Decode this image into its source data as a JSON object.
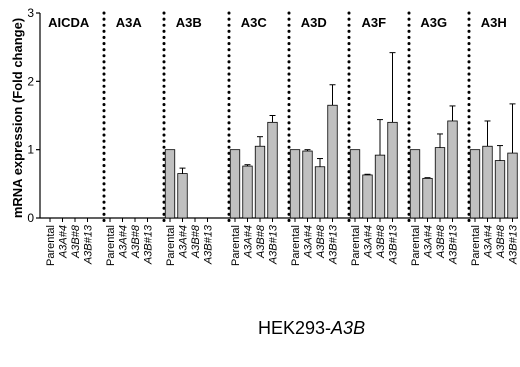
{
  "chart_data": {
    "type": "bar",
    "ylabel": "mRNA expression (Fold change)",
    "ylim": [
      0,
      3
    ],
    "yticks": [
      "0",
      "1",
      "2",
      "3"
    ],
    "xlabel": {
      "prefix": "HEK293-",
      "italic": "A3B"
    },
    "colors": {
      "bar": "#c0c0c0",
      "edge": "#000000"
    },
    "groups": [
      {
        "name": "AICDA",
        "bars": [
          {
            "label": "Parental",
            "italic": false,
            "value": 0,
            "error": 0
          },
          {
            "label": "A3A#4",
            "italic": true,
            "value": 0,
            "error": 0
          },
          {
            "label": "A3B#8",
            "italic": true,
            "value": 0,
            "error": 0
          },
          {
            "label": "A3B#13",
            "italic": true,
            "value": 0,
            "error": 0
          }
        ]
      },
      {
        "name": "A3A",
        "bars": [
          {
            "label": "Parental",
            "italic": false,
            "value": 0,
            "error": 0
          },
          {
            "label": "A3A#4",
            "italic": true,
            "value": 0,
            "error": 0
          },
          {
            "label": "A3B#8",
            "italic": true,
            "value": 0,
            "error": 0
          },
          {
            "label": "A3B#13",
            "italic": true,
            "value": 0,
            "error": 0
          }
        ]
      },
      {
        "name": "A3B",
        "bars": [
          {
            "label": "Parental",
            "italic": false,
            "value": 1.0,
            "error": 0
          },
          {
            "label": "A3A#4",
            "italic": true,
            "value": 0.65,
            "error": 0.08
          },
          {
            "label": "A3B#8",
            "italic": true,
            "value": 0,
            "error": 0
          },
          {
            "label": "A3B#13",
            "italic": true,
            "value": 0,
            "error": 0
          }
        ]
      },
      {
        "name": "A3C",
        "bars": [
          {
            "label": "Parental",
            "italic": false,
            "value": 1.0,
            "error": 0
          },
          {
            "label": "A3A#4",
            "italic": true,
            "value": 0.76,
            "error": 0.02
          },
          {
            "label": "A3B#8",
            "italic": true,
            "value": 1.05,
            "error": 0.14
          },
          {
            "label": "A3B#13",
            "italic": true,
            "value": 1.4,
            "error": 0.1
          }
        ]
      },
      {
        "name": "A3D",
        "bars": [
          {
            "label": "Parental",
            "italic": false,
            "value": 1.0,
            "error": 0
          },
          {
            "label": "A3A#4",
            "italic": true,
            "value": 0.98,
            "error": 0.02
          },
          {
            "label": "A3B#8",
            "italic": true,
            "value": 0.75,
            "error": 0.12
          },
          {
            "label": "A3B#13",
            "italic": true,
            "value": 1.65,
            "error": 0.3
          }
        ]
      },
      {
        "name": "A3F",
        "bars": [
          {
            "label": "Parental",
            "italic": false,
            "value": 1.0,
            "error": 0
          },
          {
            "label": "A3A#4",
            "italic": true,
            "value": 0.63,
            "error": 0.01
          },
          {
            "label": "A3B#8",
            "italic": true,
            "value": 0.92,
            "error": 0.52
          },
          {
            "label": "A3B#13",
            "italic": true,
            "value": 1.4,
            "error": 1.02
          }
        ]
      },
      {
        "name": "A3G",
        "bars": [
          {
            "label": "Parental",
            "italic": false,
            "value": 1.0,
            "error": 0
          },
          {
            "label": "A3A#4",
            "italic": true,
            "value": 0.58,
            "error": 0.01
          },
          {
            "label": "A3B#8",
            "italic": true,
            "value": 1.03,
            "error": 0.2
          },
          {
            "label": "A3B#13",
            "italic": true,
            "value": 1.42,
            "error": 0.22
          }
        ]
      },
      {
        "name": "A3H",
        "bars": [
          {
            "label": "Parental",
            "italic": false,
            "value": 1.0,
            "error": 0
          },
          {
            "label": "A3A#4",
            "italic": true,
            "value": 1.05,
            "error": 0.37
          },
          {
            "label": "A3B#8",
            "italic": true,
            "value": 0.84,
            "error": 0.22
          },
          {
            "label": "A3B#13",
            "italic": true,
            "value": 0.95,
            "error": 0.72
          }
        ]
      }
    ]
  }
}
